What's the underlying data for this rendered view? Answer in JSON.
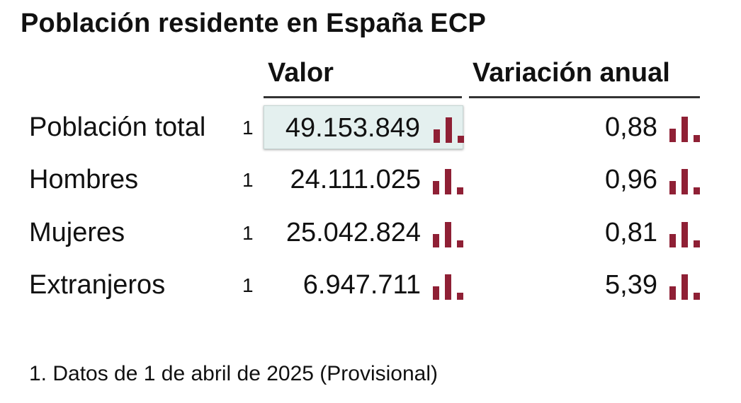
{
  "title": "Población residente en España ECP",
  "columns": {
    "valor": "Valor",
    "variacion": "Variación anual"
  },
  "icons": {
    "chart": "bar-chart-icon",
    "color": "#8f2035"
  },
  "rows": [
    {
      "label": "Población total",
      "note": "1",
      "value": "49.153.849",
      "variation": "0,88"
    },
    {
      "label": "Hombres",
      "note": "1",
      "value": "24.111.025",
      "variation": "0,96"
    },
    {
      "label": "Mujeres",
      "note": "1",
      "value": "25.042.824",
      "variation": "0,81"
    },
    {
      "label": "Extranjeros",
      "note": "1",
      "value": "6.947.711",
      "variation": "5,39"
    }
  ],
  "footnote": "1. Datos de 1 de abril de 2025 (Provisional)"
}
